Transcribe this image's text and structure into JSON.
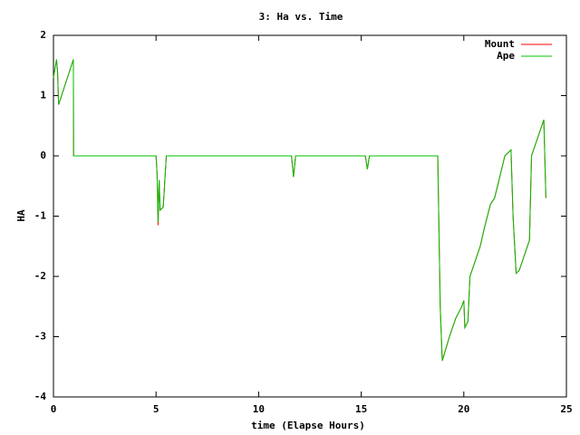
{
  "chart_data": {
    "type": "line",
    "title": "3: Ha vs. Time",
    "x_label": "time (Elapse Hours)",
    "y_label": "HA",
    "x": [
      0,
      0.15,
      0.2,
      0.25,
      0.97,
      0.98,
      5.0,
      5.05,
      5.1,
      5.15,
      5.2,
      5.35,
      5.5,
      11.6,
      11.7,
      11.8,
      15.2,
      15.3,
      15.4,
      18.73,
      18.85,
      18.95,
      19.3,
      19.6,
      19.9,
      20.0,
      20.05,
      20.2,
      20.3,
      20.6,
      20.8,
      21.0,
      21.3,
      21.5,
      22.0,
      22.3,
      22.4,
      22.55,
      22.7,
      23.0,
      23.2,
      23.3,
      23.9,
      24.0
    ],
    "series": [
      {
        "name": "Mount",
        "color": "#ff0000",
        "values": [
          1.3,
          1.6,
          1.4,
          0.85,
          1.6,
          0,
          0,
          -0.3,
          -1.15,
          -0.4,
          -0.9,
          -0.85,
          0,
          0,
          -0.35,
          0,
          0,
          -0.22,
          0,
          0,
          -2.5,
          -3.4,
          -3.0,
          -2.7,
          -2.5,
          -2.4,
          -2.85,
          -2.75,
          -2.0,
          -1.7,
          -1.5,
          -1.2,
          -0.8,
          -0.7,
          0,
          0.1,
          -1.0,
          -1.95,
          -1.9,
          -1.6,
          -1.4,
          0,
          0.6,
          -0.7
        ]
      },
      {
        "name": "Ape",
        "color": "#00c000",
        "values": [
          1.3,
          1.6,
          1.4,
          0.85,
          1.6,
          0,
          0,
          -0.3,
          -1.1,
          -0.4,
          -0.9,
          -0.85,
          0,
          0,
          -0.35,
          0,
          0,
          -0.22,
          0,
          0,
          -2.5,
          -3.4,
          -3.0,
          -2.7,
          -2.5,
          -2.4,
          -2.85,
          -2.75,
          -2.0,
          -1.7,
          -1.5,
          -1.2,
          -0.8,
          -0.7,
          0,
          0.1,
          -1.0,
          -1.95,
          -1.9,
          -1.6,
          -1.4,
          0,
          0.6,
          -0.7
        ]
      }
    ],
    "xlim": [
      0,
      25
    ],
    "xticks": [
      0,
      5,
      10,
      15,
      20,
      25
    ],
    "ylim": [
      -4,
      2
    ],
    "yticks": [
      -4,
      -3,
      -2,
      -1,
      0,
      1,
      2
    ],
    "legend": "top-right"
  }
}
